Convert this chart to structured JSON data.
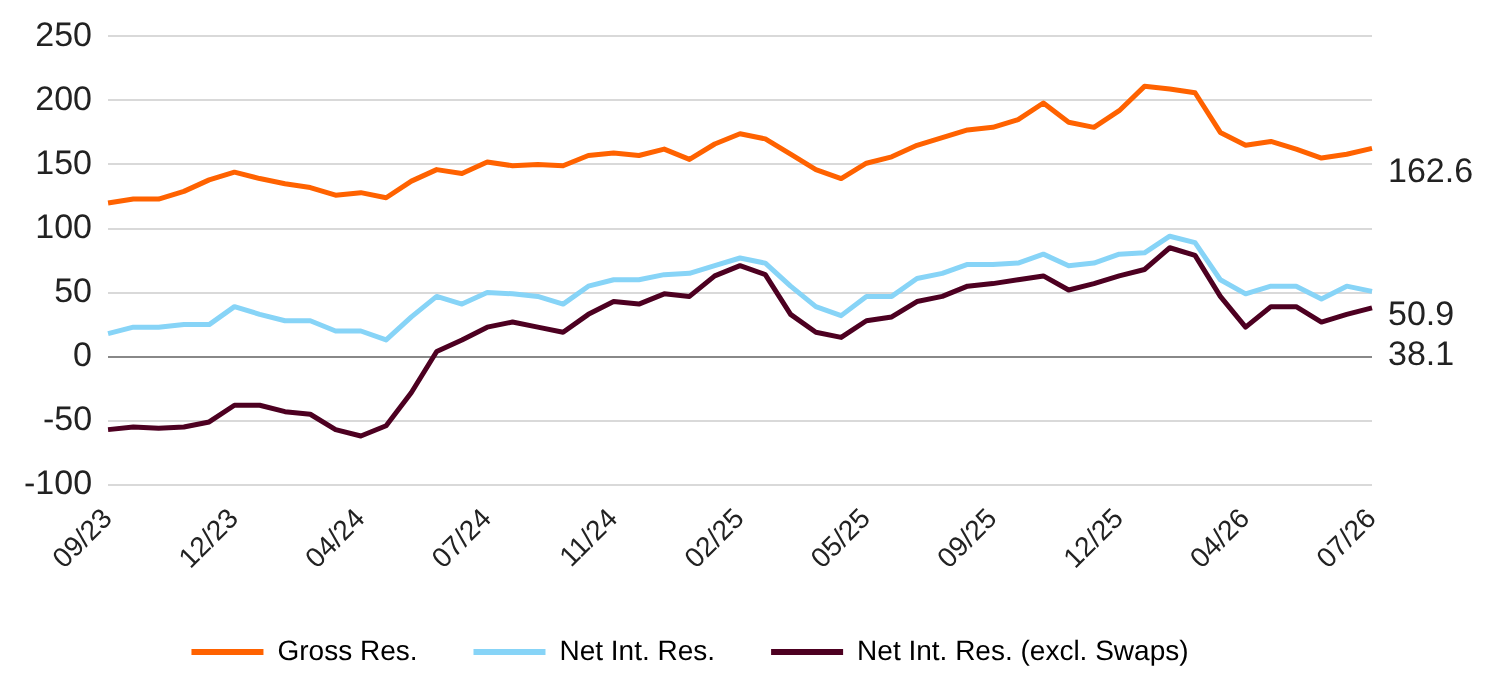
{
  "chart_data": {
    "type": "line",
    "categories": [
      "09/23",
      null,
      null,
      null,
      null,
      "12/23",
      null,
      null,
      null,
      null,
      "04/24",
      null,
      null,
      null,
      null,
      "07/24",
      null,
      null,
      null,
      null,
      "11/24",
      null,
      null,
      null,
      null,
      "02/25",
      null,
      null,
      null,
      null,
      "05/25",
      null,
      null,
      null,
      null,
      "09/25",
      null,
      null,
      null,
      null,
      "12/25",
      null,
      null,
      null,
      null,
      "04/26",
      null,
      null,
      null,
      null,
      "07/26"
    ],
    "series": [
      {
        "name": "Gross Res.",
        "color": "#ff6200",
        "values": [
          120,
          123,
          123,
          129,
          138,
          144,
          139,
          135,
          132,
          126,
          128,
          124,
          137,
          146,
          143,
          152,
          149,
          150,
          149,
          157,
          159,
          157,
          162,
          154,
          166,
          174,
          170,
          158,
          146,
          139,
          151,
          156,
          165,
          171,
          177,
          179,
          185,
          198,
          183,
          179,
          192,
          211,
          209,
          206,
          175,
          165,
          168,
          162,
          155,
          158,
          162.6
        ]
      },
      {
        "name": "Net Int. Res.",
        "color": "#87d4f7",
        "values": [
          18,
          23,
          23,
          25,
          25,
          39,
          33,
          28,
          28,
          20,
          20,
          13,
          31,
          47,
          41,
          50,
          49,
          47,
          41,
          55,
          60,
          60,
          64,
          65,
          71,
          77,
          73,
          55,
          39,
          32,
          47,
          47,
          61,
          65,
          72,
          72,
          73,
          80,
          71,
          73,
          80,
          81,
          94,
          89,
          60,
          49,
          55,
          55,
          45,
          55,
          50.9
        ]
      },
      {
        "name": "Net Int. Res. (excl. Swaps)",
        "color": "#4d0021",
        "values": [
          -57,
          -55,
          -56,
          -55,
          -51,
          -38,
          -38,
          -43,
          -45,
          -57,
          -62,
          -54,
          -28,
          4,
          13,
          23,
          27,
          23,
          19,
          33,
          43,
          41,
          49,
          47,
          63,
          71,
          64,
          33,
          19,
          15,
          28,
          31,
          43,
          47,
          55,
          57,
          60,
          63,
          52,
          57,
          63,
          68,
          85,
          79,
          47,
          23,
          39,
          39,
          27,
          33,
          38.1
        ]
      }
    ],
    "ylim": [
      -100,
      250
    ],
    "yticks": [
      -100,
      -50,
      0,
      50,
      100,
      150,
      200,
      250
    ],
    "grid": "y",
    "legend": "bottom",
    "line_style": "solid",
    "marker": "none",
    "annotations": [
      {
        "text": "162.6",
        "x": "07/26",
        "y": 162.6
      },
      {
        "text": "50.9",
        "x": "07/26",
        "y": 50.9
      },
      {
        "text": "38.1",
        "x": "07/26",
        "y": 38.1
      }
    ]
  }
}
